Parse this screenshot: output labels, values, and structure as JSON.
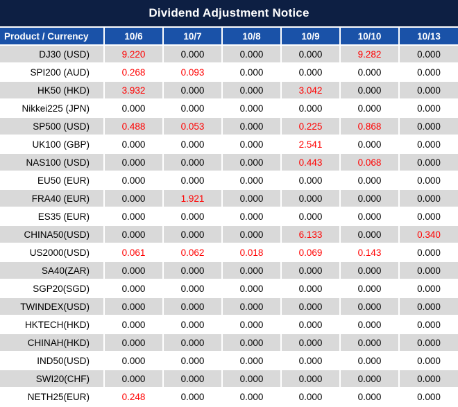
{
  "title": "Dividend Adjustment Notice",
  "colors": {
    "title_bg": "#0d1f43",
    "header_bg": "#1a52a8",
    "header_text": "#ffffff",
    "row_alt_bg": "#d9d9d9",
    "row_bg": "#ffffff",
    "value_zero_text": "#000000",
    "value_nonzero_text": "#ff0000"
  },
  "table": {
    "product_header": "Product / Currency",
    "date_headers": [
      "10/6",
      "10/7",
      "10/8",
      "10/9",
      "10/10",
      "10/13"
    ],
    "rows": [
      {
        "product": "DJ30 (USD)",
        "values": [
          "9.220",
          "0.000",
          "0.000",
          "0.000",
          "9.282",
          "0.000"
        ]
      },
      {
        "product": "SPI200 (AUD)",
        "values": [
          "0.268",
          "0.093",
          "0.000",
          "0.000",
          "0.000",
          "0.000"
        ]
      },
      {
        "product": "HK50 (HKD)",
        "values": [
          "3.932",
          "0.000",
          "0.000",
          "3.042",
          "0.000",
          "0.000"
        ]
      },
      {
        "product": "Nikkei225 (JPN)",
        "values": [
          "0.000",
          "0.000",
          "0.000",
          "0.000",
          "0.000",
          "0.000"
        ]
      },
      {
        "product": "SP500 (USD)",
        "values": [
          "0.488",
          "0.053",
          "0.000",
          "0.225",
          "0.868",
          "0.000"
        ]
      },
      {
        "product": "UK100 (GBP)",
        "values": [
          "0.000",
          "0.000",
          "0.000",
          "2.541",
          "0.000",
          "0.000"
        ]
      },
      {
        "product": "NAS100 (USD)",
        "values": [
          "0.000",
          "0.000",
          "0.000",
          "0.443",
          "0.068",
          "0.000"
        ]
      },
      {
        "product": "EU50 (EUR)",
        "values": [
          "0.000",
          "0.000",
          "0.000",
          "0.000",
          "0.000",
          "0.000"
        ]
      },
      {
        "product": "FRA40 (EUR)",
        "values": [
          "0.000",
          "1.921",
          "0.000",
          "0.000",
          "0.000",
          "0.000"
        ]
      },
      {
        "product": "ES35 (EUR)",
        "values": [
          "0.000",
          "0.000",
          "0.000",
          "0.000",
          "0.000",
          "0.000"
        ]
      },
      {
        "product": "CHINA50(USD)",
        "values": [
          "0.000",
          "0.000",
          "0.000",
          "6.133",
          "0.000",
          "0.340"
        ]
      },
      {
        "product": "US2000(USD)",
        "values": [
          "0.061",
          "0.062",
          "0.018",
          "0.069",
          "0.143",
          "0.000"
        ]
      },
      {
        "product": "SA40(ZAR)",
        "values": [
          "0.000",
          "0.000",
          "0.000",
          "0.000",
          "0.000",
          "0.000"
        ]
      },
      {
        "product": "SGP20(SGD)",
        "values": [
          "0.000",
          "0.000",
          "0.000",
          "0.000",
          "0.000",
          "0.000"
        ]
      },
      {
        "product": "TWINDEX(USD)",
        "values": [
          "0.000",
          "0.000",
          "0.000",
          "0.000",
          "0.000",
          "0.000"
        ]
      },
      {
        "product": "HKTECH(HKD)",
        "values": [
          "0.000",
          "0.000",
          "0.000",
          "0.000",
          "0.000",
          "0.000"
        ]
      },
      {
        "product": "CHINAH(HKD)",
        "values": [
          "0.000",
          "0.000",
          "0.000",
          "0.000",
          "0.000",
          "0.000"
        ]
      },
      {
        "product": "IND50(USD)",
        "values": [
          "0.000",
          "0.000",
          "0.000",
          "0.000",
          "0.000",
          "0.000"
        ]
      },
      {
        "product": "SWI20(CHF)",
        "values": [
          "0.000",
          "0.000",
          "0.000",
          "0.000",
          "0.000",
          "0.000"
        ]
      },
      {
        "product": "NETH25(EUR)",
        "values": [
          "0.248",
          "0.000",
          "0.000",
          "0.000",
          "0.000",
          "0.000"
        ]
      }
    ]
  },
  "chart_data": {
    "type": "table",
    "title": "Dividend Adjustment Notice",
    "columns": [
      "Product / Currency",
      "10/6",
      "10/7",
      "10/8",
      "10/9",
      "10/10",
      "10/13"
    ],
    "rows": [
      [
        "DJ30 (USD)",
        9.22,
        0.0,
        0.0,
        0.0,
        9.282,
        0.0
      ],
      [
        "SPI200 (AUD)",
        0.268,
        0.093,
        0.0,
        0.0,
        0.0,
        0.0
      ],
      [
        "HK50 (HKD)",
        3.932,
        0.0,
        0.0,
        3.042,
        0.0,
        0.0
      ],
      [
        "Nikkei225 (JPN)",
        0.0,
        0.0,
        0.0,
        0.0,
        0.0,
        0.0
      ],
      [
        "SP500 (USD)",
        0.488,
        0.053,
        0.0,
        0.225,
        0.868,
        0.0
      ],
      [
        "UK100 (GBP)",
        0.0,
        0.0,
        0.0,
        2.541,
        0.0,
        0.0
      ],
      [
        "NAS100 (USD)",
        0.0,
        0.0,
        0.0,
        0.443,
        0.068,
        0.0
      ],
      [
        "EU50 (EUR)",
        0.0,
        0.0,
        0.0,
        0.0,
        0.0,
        0.0
      ],
      [
        "FRA40 (EUR)",
        0.0,
        1.921,
        0.0,
        0.0,
        0.0,
        0.0
      ],
      [
        "ES35 (EUR)",
        0.0,
        0.0,
        0.0,
        0.0,
        0.0,
        0.0
      ],
      [
        "CHINA50(USD)",
        0.0,
        0.0,
        0.0,
        6.133,
        0.0,
        0.34
      ],
      [
        "US2000(USD)",
        0.061,
        0.062,
        0.018,
        0.069,
        0.143,
        0.0
      ],
      [
        "SA40(ZAR)",
        0.0,
        0.0,
        0.0,
        0.0,
        0.0,
        0.0
      ],
      [
        "SGP20(SGD)",
        0.0,
        0.0,
        0.0,
        0.0,
        0.0,
        0.0
      ],
      [
        "TWINDEX(USD)",
        0.0,
        0.0,
        0.0,
        0.0,
        0.0,
        0.0
      ],
      [
        "HKTECH(HKD)",
        0.0,
        0.0,
        0.0,
        0.0,
        0.0,
        0.0
      ],
      [
        "CHINAH(HKD)",
        0.0,
        0.0,
        0.0,
        0.0,
        0.0,
        0.0
      ],
      [
        "IND50(USD)",
        0.0,
        0.0,
        0.0,
        0.0,
        0.0,
        0.0
      ],
      [
        "SWI20(CHF)",
        0.0,
        0.0,
        0.0,
        0.0,
        0.0,
        0.0
      ],
      [
        "NETH25(EUR)",
        0.248,
        0.0,
        0.0,
        0.0,
        0.0,
        0.0
      ]
    ],
    "notes": "Non-zero dividend values rendered in red; zeros in black. Alternating gray/white rows."
  }
}
